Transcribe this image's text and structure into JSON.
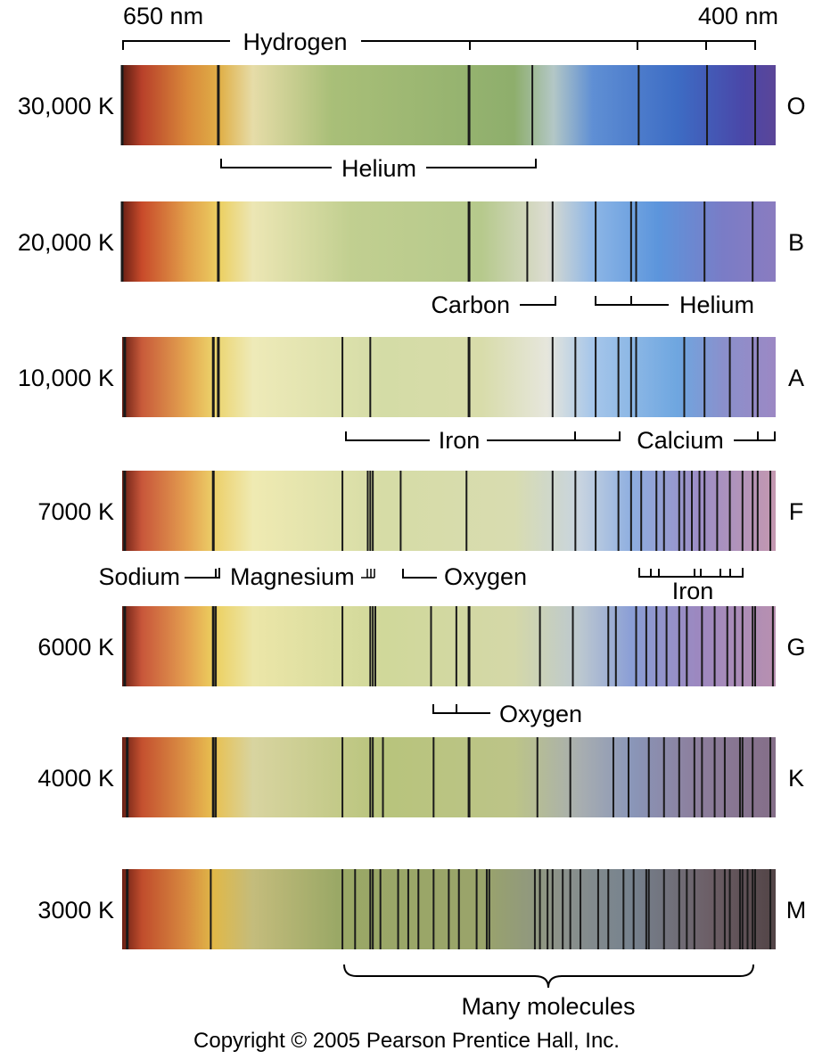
{
  "axis": {
    "left_label": "650 nm",
    "right_label": "400 nm",
    "left_nm": 650,
    "right_nm": 400
  },
  "spectra": [
    {
      "temp": "30,000 K",
      "cls": "O",
      "lines": [
        650,
        612,
        513,
        488,
        446,
        419,
        400
      ]
    },
    {
      "temp": "20,000 K",
      "cls": "B",
      "lines": [
        650,
        612,
        513,
        490,
        480,
        463,
        449,
        447,
        420,
        401
      ]
    },
    {
      "temp": "10,000 K",
      "cls": "A",
      "lines": [
        649,
        614,
        612,
        563,
        552,
        513,
        480,
        471,
        463,
        454,
        449,
        447,
        428,
        420,
        410,
        401,
        399
      ]
    },
    {
      "temp": "7000 K",
      "cls": "F",
      "lines": [
        649,
        614,
        563,
        553,
        552,
        551,
        540,
        514,
        480,
        471,
        463,
        454,
        449,
        445,
        439,
        436,
        430,
        428,
        425,
        422,
        420,
        415,
        410,
        405,
        401,
        399,
        394
      ]
    },
    {
      "temp": "6000 K",
      "cls": "G",
      "lines": [
        649,
        614,
        613,
        563,
        552,
        551,
        550,
        528,
        518,
        513,
        485,
        472,
        458,
        455,
        447,
        443,
        439,
        435,
        430,
        427,
        421,
        416,
        411,
        408,
        405,
        401,
        400,
        393
      ]
    },
    {
      "temp": "4000 K",
      "cls": "K",
      "lines": [
        648,
        614,
        613,
        563,
        552,
        551,
        547,
        527,
        513,
        486,
        473,
        456,
        450,
        442,
        436,
        430,
        424,
        421,
        416,
        412,
        406,
        405,
        401,
        394
      ]
    },
    {
      "temp": "3000 K",
      "cls": "M",
      "lines": [
        648,
        615,
        563,
        558,
        552,
        551,
        548,
        541,
        537,
        533,
        527,
        521,
        517,
        510,
        506,
        505,
        487,
        485,
        482,
        480,
        476,
        473,
        469,
        462,
        458,
        452,
        448,
        443,
        442,
        436,
        430,
        427,
        424,
        416,
        412,
        410,
        406,
        405,
        403,
        401,
        400,
        394
      ]
    }
  ],
  "labels": {
    "hydrogen": "Hydrogen",
    "helium_o": "Helium",
    "carbon": "Carbon",
    "helium_b": "Helium",
    "iron_a": "Iron",
    "calcium": "Calcium",
    "sodium": "Sodium",
    "magnesium": "Magnesium",
    "oxygen_f": "Oxygen",
    "iron_f": "Iron",
    "oxygen_g": "Oxygen",
    "molecules": "Many molecules"
  },
  "copyright": "Copyright © 2005 Pearson Prentice Hall, Inc."
}
